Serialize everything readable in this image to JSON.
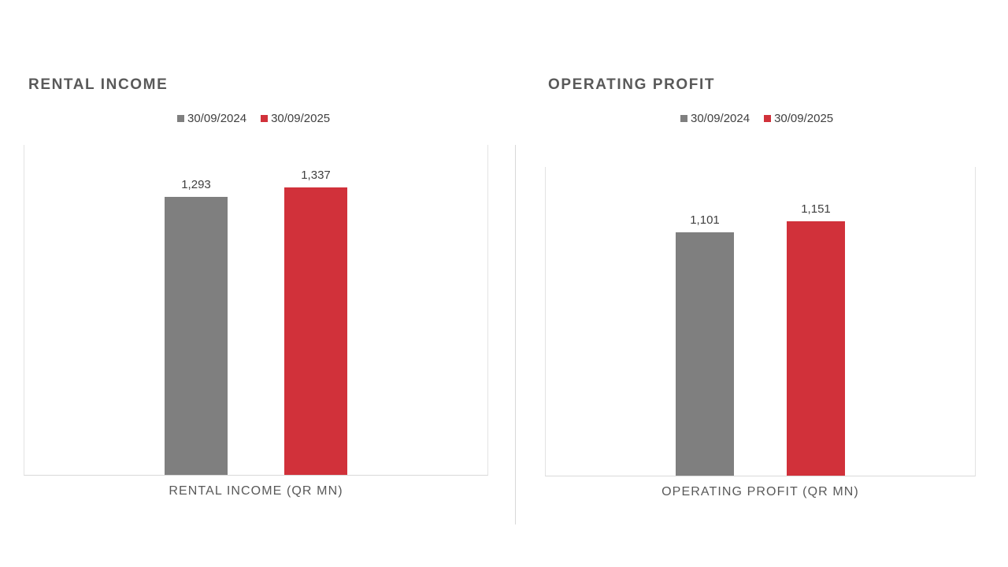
{
  "chart_data": [
    {
      "type": "bar",
      "title": "RENTAL INCOME",
      "categories": [
        "RENTAL INCOME (QR MN)"
      ],
      "series": [
        {
          "name": "30/09/2024",
          "values": [
            1293
          ],
          "labels": [
            "1,293"
          ],
          "color": "#7f7f7f"
        },
        {
          "name": "30/09/2025",
          "values": [
            1337
          ],
          "labels": [
            "1,337"
          ],
          "color": "#d1313a"
        }
      ],
      "xlabel": "RENTAL INCOME (QR MN)",
      "ylabel": "",
      "ylim": [
        0,
        1540
      ],
      "grid": false,
      "legend": "top"
    },
    {
      "type": "bar",
      "title": "OPERATING PROFIT",
      "categories": [
        "OPERATING PROFIT (QR MN)"
      ],
      "series": [
        {
          "name": "30/09/2024",
          "values": [
            1101
          ],
          "labels": [
            "1,101"
          ],
          "color": "#7f7f7f"
        },
        {
          "name": "30/09/2025",
          "values": [
            1151
          ],
          "labels": [
            "1,151"
          ],
          "color": "#d1313a"
        }
      ],
      "xlabel": "OPERATING PROFIT (QR MN)",
      "ylabel": "",
      "ylim": [
        0,
        1400
      ],
      "grid": false,
      "legend": "top"
    }
  ]
}
